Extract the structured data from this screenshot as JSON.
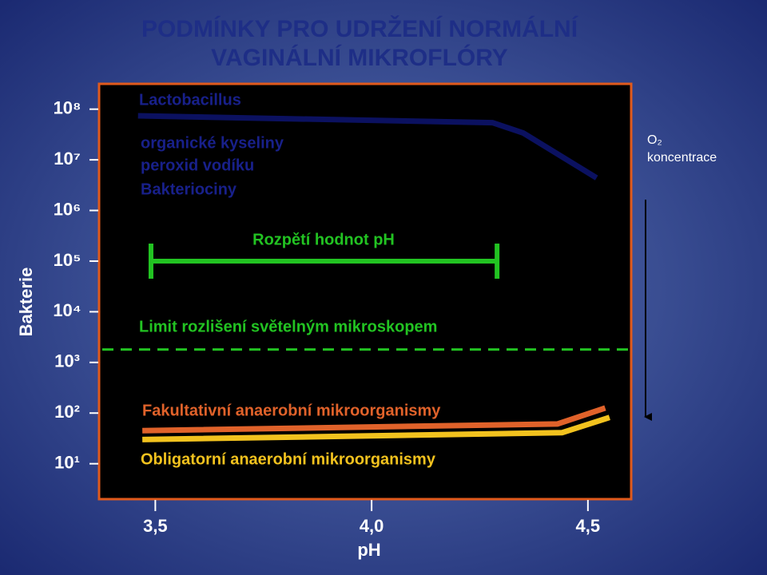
{
  "chart_data": {
    "type": "line",
    "title": [
      "PODMÍNKY PRO UDRŽENÍ NORMÁLNÍ",
      "VAGINÁLNÍ MIKROFLÓRY"
    ],
    "x_label": "pH",
    "y_label": "Bakterie",
    "yscale": "log",
    "xlim": [
      3.37,
      4.6
    ],
    "xticks": [
      {
        "value": 3.5,
        "label": "3,5"
      },
      {
        "value": 4.0,
        "label": "4,0"
      },
      {
        "value": 4.5,
        "label": "4,5"
      }
    ],
    "ylim": [
      2,
      316000000
    ],
    "yticks": [
      {
        "value": 100000000,
        "label": "10⁸"
      },
      {
        "value": 10000000,
        "label": "10⁷"
      },
      {
        "value": 1000000,
        "label": "10⁶"
      },
      {
        "value": 100000,
        "label": "10⁵"
      },
      {
        "value": 10000,
        "label": "10⁴"
      },
      {
        "value": 1000,
        "label": "10³"
      },
      {
        "value": 100,
        "label": "10²"
      },
      {
        "value": 10,
        "label": "10¹"
      }
    ],
    "series": [
      {
        "name": "Lactobacillus",
        "color": "#0b1160",
        "x": [
          3.46,
          4.28,
          4.35,
          4.52
        ],
        "values": [
          74000000,
          54000000,
          34000000,
          4400000
        ]
      },
      {
        "name": "Fakultativní anaerobní mikroorganismy",
        "color": "#e0622a",
        "x": [
          3.47,
          4.43,
          4.54
        ],
        "values": [
          45,
          61,
          126
        ]
      },
      {
        "name": "Obligatorní anaerobní mikroorganismy",
        "color": "#f2c21e",
        "x": [
          3.47,
          4.44,
          4.55
        ],
        "values": [
          30,
          41,
          82
        ]
      }
    ],
    "lactobacillus_products": [
      "organické kyseliny",
      "peroxid vodíku",
      "Bakteriociny"
    ],
    "range": {
      "label": "Rozpětí hodnot pH",
      "x": [
        3.49,
        4.29
      ],
      "y": 100000,
      "color": "#22c322"
    },
    "threshold": {
      "label": "Limit rozlišení světelným mikroskopem",
      "value": 1800,
      "color": "#22c322"
    },
    "o2_label": [
      "O₂",
      "koncentrace"
    ]
  }
}
